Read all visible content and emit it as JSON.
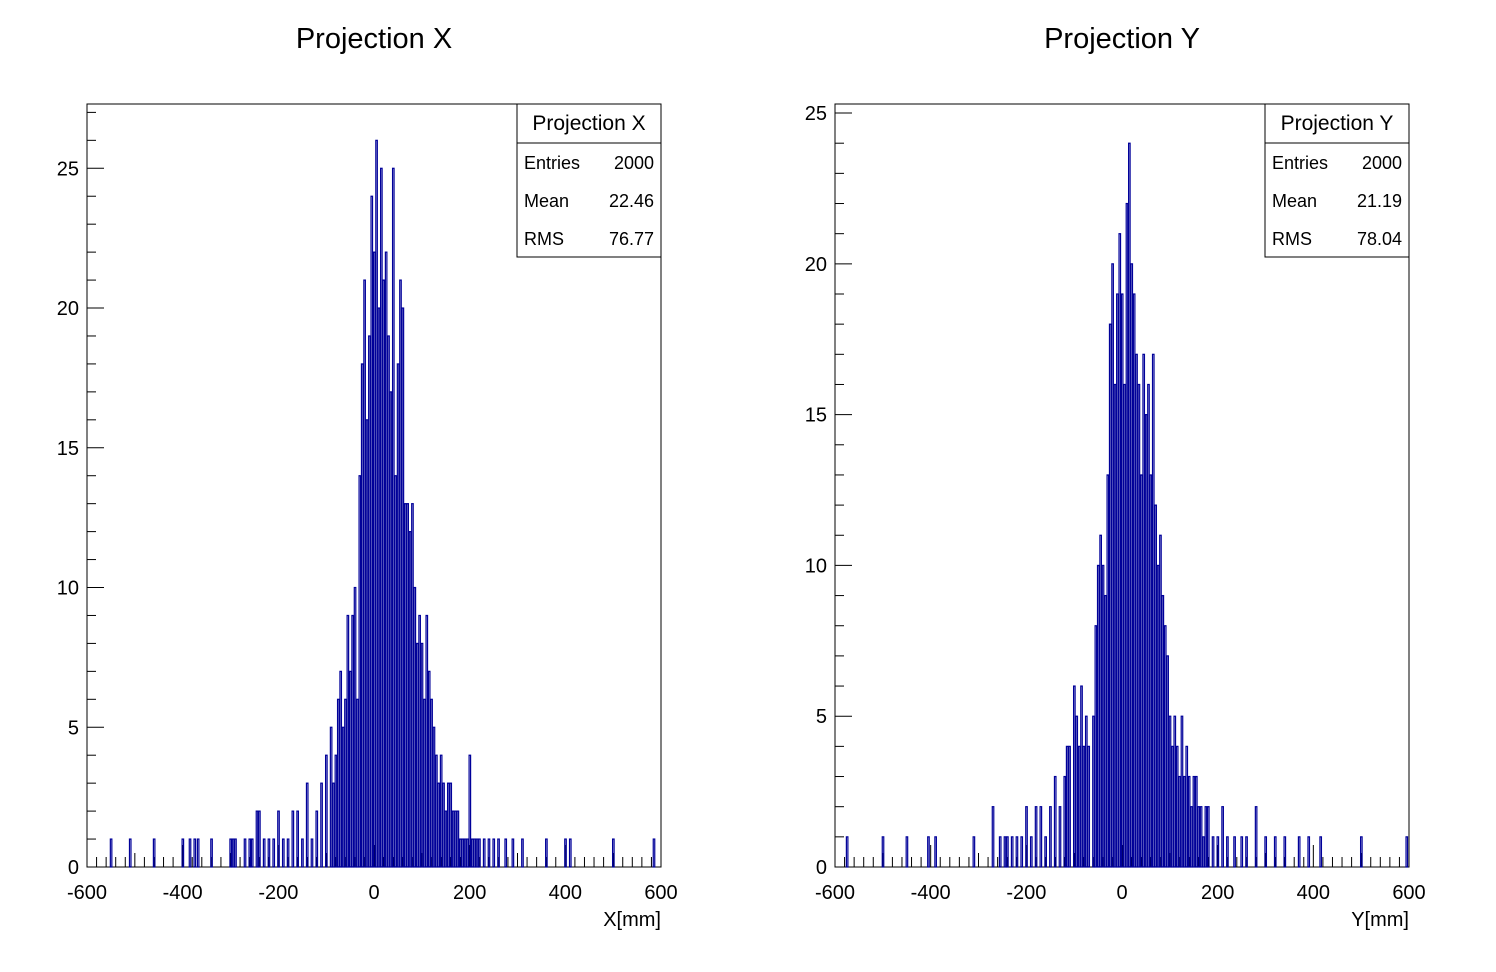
{
  "chart_data": [
    {
      "type": "bar",
      "title": "Projection X",
      "xlabel": "X[mm]",
      "ylabel": "",
      "xlim": [
        -600,
        600
      ],
      "ylim": [
        0,
        27.3
      ],
      "xticks": [
        -600,
        -400,
        -200,
        0,
        200,
        400,
        600
      ],
      "yticks": [
        0,
        5,
        10,
        15,
        20,
        25
      ],
      "line_color": "#000099",
      "grid": false,
      "legend": "none",
      "stats": {
        "title": "Projection X",
        "rows": [
          {
            "label": "Entries",
            "value": "2000"
          },
          {
            "label": "Mean",
            "value": "22.46"
          },
          {
            "label": "RMS",
            "value": "76.77"
          }
        ]
      },
      "series": [
        {
          "bin_width": 2.4,
          "x": [
            -550,
            -510,
            -460,
            -400,
            -385,
            -375,
            -368,
            -340,
            -300,
            -295,
            -290,
            -270,
            -260,
            -255,
            -245,
            -240,
            -230,
            -220,
            -210,
            -200,
            -190,
            -180,
            -170,
            -160,
            -150,
            -140,
            -130,
            -120,
            -110,
            -100,
            -90,
            -85,
            -80,
            -75,
            -70,
            -65,
            -60,
            -55,
            -50,
            -45,
            -40,
            -35,
            -30,
            -25,
            -20,
            -15,
            -10,
            -5,
            0,
            5,
            10,
            15,
            20,
            25,
            30,
            35,
            40,
            45,
            50,
            55,
            60,
            65,
            70,
            75,
            80,
            85,
            90,
            95,
            100,
            105,
            110,
            115,
            120,
            125,
            130,
            135,
            140,
            145,
            150,
            155,
            160,
            165,
            170,
            175,
            180,
            185,
            190,
            195,
            200,
            205,
            210,
            215,
            220,
            230,
            240,
            250,
            260,
            275,
            290,
            310,
            360,
            400,
            410,
            500,
            585
          ],
          "values": [
            1,
            1,
            1,
            1,
            1,
            1,
            1,
            1,
            1,
            1,
            1,
            1,
            1,
            1,
            2,
            2,
            1,
            1,
            1,
            2,
            1,
            1,
            2,
            2,
            1,
            3,
            1,
            2,
            3,
            4,
            5,
            3,
            4,
            6,
            7,
            5,
            6,
            9,
            7,
            9,
            10,
            6,
            14,
            18,
            21,
            16,
            19,
            24,
            22,
            26,
            20,
            25,
            21,
            22,
            19,
            17,
            25,
            14,
            18,
            21,
            20,
            13,
            13,
            12,
            13,
            10,
            8,
            9,
            8,
            6,
            9,
            7,
            6,
            5,
            4,
            3,
            4,
            3,
            2,
            3,
            3,
            2,
            2,
            2,
            1,
            1,
            1,
            1,
            4,
            1,
            1,
            1,
            1,
            1,
            1,
            1,
            1,
            1,
            1,
            1,
            1,
            1,
            1,
            1,
            1
          ]
        }
      ]
    },
    {
      "type": "bar",
      "title": "Projection Y",
      "xlabel": "Y[mm]",
      "ylabel": "",
      "xlim": [
        -600,
        600
      ],
      "ylim": [
        0,
        25.3
      ],
      "xticks": [
        -600,
        -400,
        -200,
        0,
        200,
        400,
        600
      ],
      "yticks": [
        0,
        5,
        10,
        15,
        20,
        25
      ],
      "line_color": "#000099",
      "grid": false,
      "legend": "none",
      "stats": {
        "title": "Projection Y",
        "rows": [
          {
            "label": "Entries",
            "value": "2000"
          },
          {
            "label": "Mean",
            "value": "21.19"
          },
          {
            "label": "RMS",
            "value": "78.04"
          }
        ]
      },
      "series": [
        {
          "bin_width": 2.4,
          "x": [
            -575,
            -500,
            -450,
            -405,
            -390,
            -310,
            -270,
            -255,
            -245,
            -240,
            -230,
            -220,
            -210,
            -200,
            -190,
            -180,
            -170,
            -160,
            -150,
            -140,
            -130,
            -120,
            -115,
            -110,
            -100,
            -95,
            -90,
            -85,
            -80,
            -75,
            -70,
            -60,
            -55,
            -50,
            -45,
            -40,
            -35,
            -30,
            -25,
            -20,
            -15,
            -10,
            -5,
            0,
            5,
            10,
            15,
            20,
            25,
            30,
            35,
            40,
            45,
            50,
            55,
            60,
            65,
            70,
            75,
            80,
            85,
            90,
            95,
            100,
            105,
            110,
            115,
            120,
            125,
            130,
            135,
            140,
            145,
            150,
            155,
            160,
            165,
            170,
            175,
            180,
            190,
            200,
            210,
            220,
            235,
            250,
            260,
            280,
            300,
            320,
            340,
            370,
            390,
            415,
            500,
            595
          ],
          "values": [
            1,
            1,
            1,
            1,
            1,
            1,
            2,
            1,
            1,
            1,
            1,
            1,
            1,
            2,
            1,
            2,
            2,
            1,
            2,
            3,
            2,
            3,
            4,
            4,
            6,
            5,
            4,
            6,
            4,
            5,
            4,
            5,
            8,
            10,
            11,
            10,
            9,
            13,
            18,
            20,
            16,
            19,
            21,
            19,
            16,
            22,
            24,
            20,
            19,
            17,
            16,
            13,
            17,
            15,
            16,
            13,
            17,
            12,
            10,
            11,
            9,
            8,
            7,
            5,
            4,
            5,
            4,
            3,
            5,
            3,
            4,
            3,
            2,
            3,
            3,
            2,
            2,
            1,
            2,
            2,
            1,
            1,
            2,
            1,
            1,
            1,
            1,
            2,
            1,
            1,
            1,
            1,
            1,
            1,
            1,
            1
          ]
        }
      ]
    }
  ]
}
